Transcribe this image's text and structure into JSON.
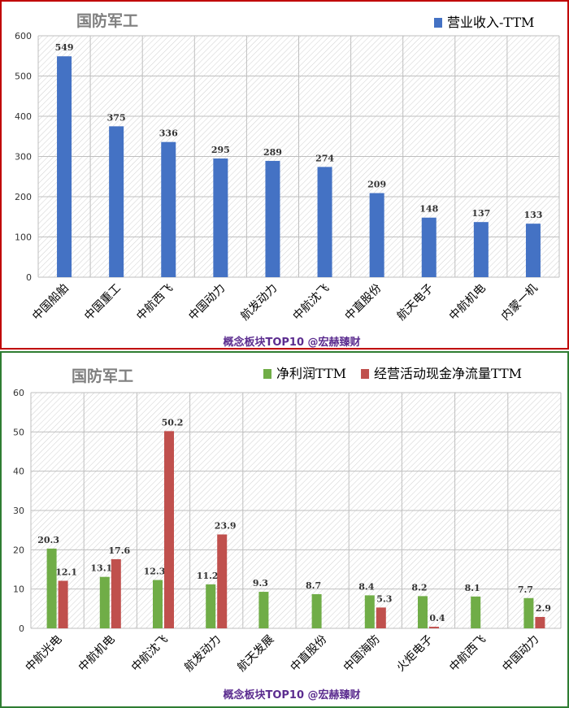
{
  "colors": {
    "blue": "#4472c4",
    "green": "#70ad47",
    "red": "#c0504d",
    "watermark": "#5b2c8f"
  },
  "chart_data": [
    {
      "type": "bar",
      "title": "国防军工",
      "categories": [
        "中国船舶",
        "中国重工",
        "中航西飞",
        "中国动力",
        "航发动力",
        "中航沈飞",
        "中直股份",
        "航天电子",
        "中航机电",
        "内蒙一机"
      ],
      "series": [
        {
          "name": "营业收入-TTM",
          "color": "#4472c4",
          "values": [
            549,
            375,
            336,
            295,
            289,
            274,
            209,
            148,
            137,
            133
          ]
        }
      ],
      "ylim": [
        0,
        600
      ],
      "yticks": [
        0,
        100,
        200,
        300,
        400,
        500,
        600
      ],
      "grid": true,
      "legend": "top-right",
      "watermark": "概念板块TOP10 @宏赫臻财"
    },
    {
      "type": "bar",
      "title": "国防军工",
      "categories": [
        "中航光电",
        "中航机电",
        "中航沈飞",
        "航发动力",
        "航天发展",
        "中直股份",
        "中国海防",
        "火炬电子",
        "中航西飞",
        "中国动力"
      ],
      "series": [
        {
          "name": "净利润TTM",
          "color": "#70ad47",
          "values": [
            20.3,
            13.1,
            12.3,
            11.2,
            9.3,
            8.7,
            8.4,
            8.2,
            8.1,
            7.7
          ]
        },
        {
          "name": "经营活动现金净流量TTM",
          "color": "#c0504d",
          "values": [
            12.1,
            17.6,
            50.2,
            23.9,
            null,
            null,
            5.3,
            0.4,
            null,
            2.9
          ]
        }
      ],
      "ylim": [
        0,
        60
      ],
      "yticks": [
        0,
        10,
        20,
        30,
        40,
        50,
        60
      ],
      "grid": true,
      "legend": "top-right",
      "watermark": "概念板块TOP10 @宏赫臻财"
    }
  ]
}
